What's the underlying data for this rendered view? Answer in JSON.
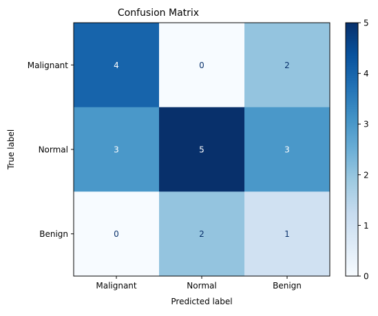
{
  "chart_data": {
    "type": "heatmap",
    "title": "Confusion Matrix",
    "xlabel": "Predicted label",
    "ylabel": "True label",
    "x_categories": [
      "Malignant",
      "Normal",
      "Benign"
    ],
    "y_categories": [
      "Malignant",
      "Normal",
      "Benign"
    ],
    "values": [
      [
        4,
        0,
        2
      ],
      [
        3,
        5,
        3
      ],
      [
        0,
        2,
        1
      ]
    ],
    "colormap": "Blues",
    "color_range": [
      0,
      5
    ],
    "colorbar_ticks": [
      0,
      1,
      2,
      3,
      4,
      5
    ],
    "grid": false
  }
}
